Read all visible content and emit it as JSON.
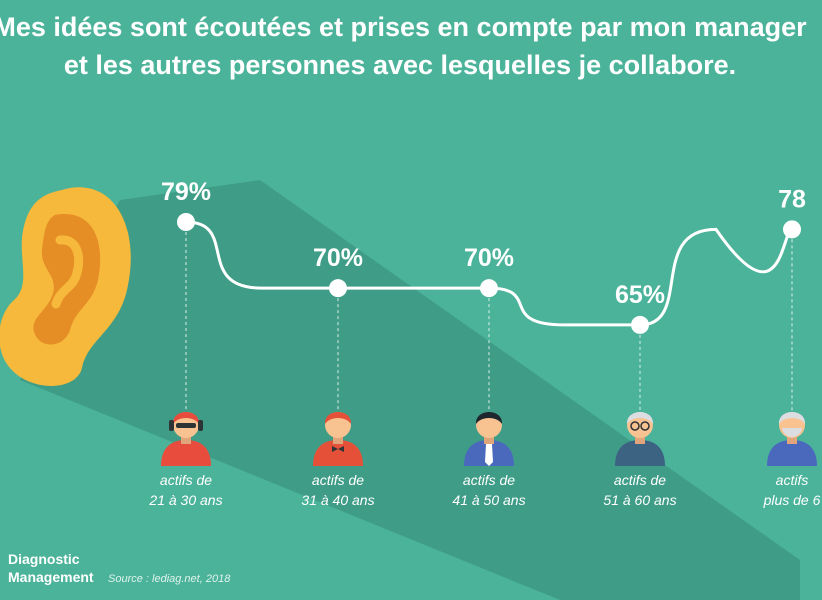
{
  "header": {
    "line1": "Mes idées sont écoutées et prises en compte par mon manager",
    "line2": "et les autres personnes avec lesquelles je collabore."
  },
  "footer": {
    "brand_line1": "Diagnostic",
    "brand_line2": "Management",
    "source": "Source : lediag.net, 2018"
  },
  "colors": {
    "background": "#4bb39a",
    "shadow": "#3f9d87",
    "ear": "#f6b93b",
    "ear_inner": "#e58e26",
    "line": "#ffffff"
  },
  "icons": [
    "ear-icon",
    "person-headphones-icon",
    "person-bowtie-icon",
    "person-suit-icon",
    "person-elder-icon",
    "person-bald-icon"
  ],
  "chart_data": {
    "type": "line",
    "title": "Mes idées sont écoutées et prises en compte par mon manager et les autres personnes avec lesquelles je collabore.",
    "categories": [
      [
        "actifs de",
        "21 à 30 ans"
      ],
      [
        "actifs de",
        "31 à 40 ans"
      ],
      [
        "actifs de",
        "41 à 50 ans"
      ],
      [
        "actifs de",
        "51 à 60 ans"
      ],
      [
        "actifs",
        "plus de 6"
      ]
    ],
    "values": [
      79,
      70,
      70,
      65,
      78
    ],
    "value_labels": [
      "79%",
      "70%",
      "70%",
      "65%",
      "78"
    ],
    "unit": "%",
    "ylim": [
      60,
      82
    ],
    "grid": false,
    "legend": "none"
  }
}
